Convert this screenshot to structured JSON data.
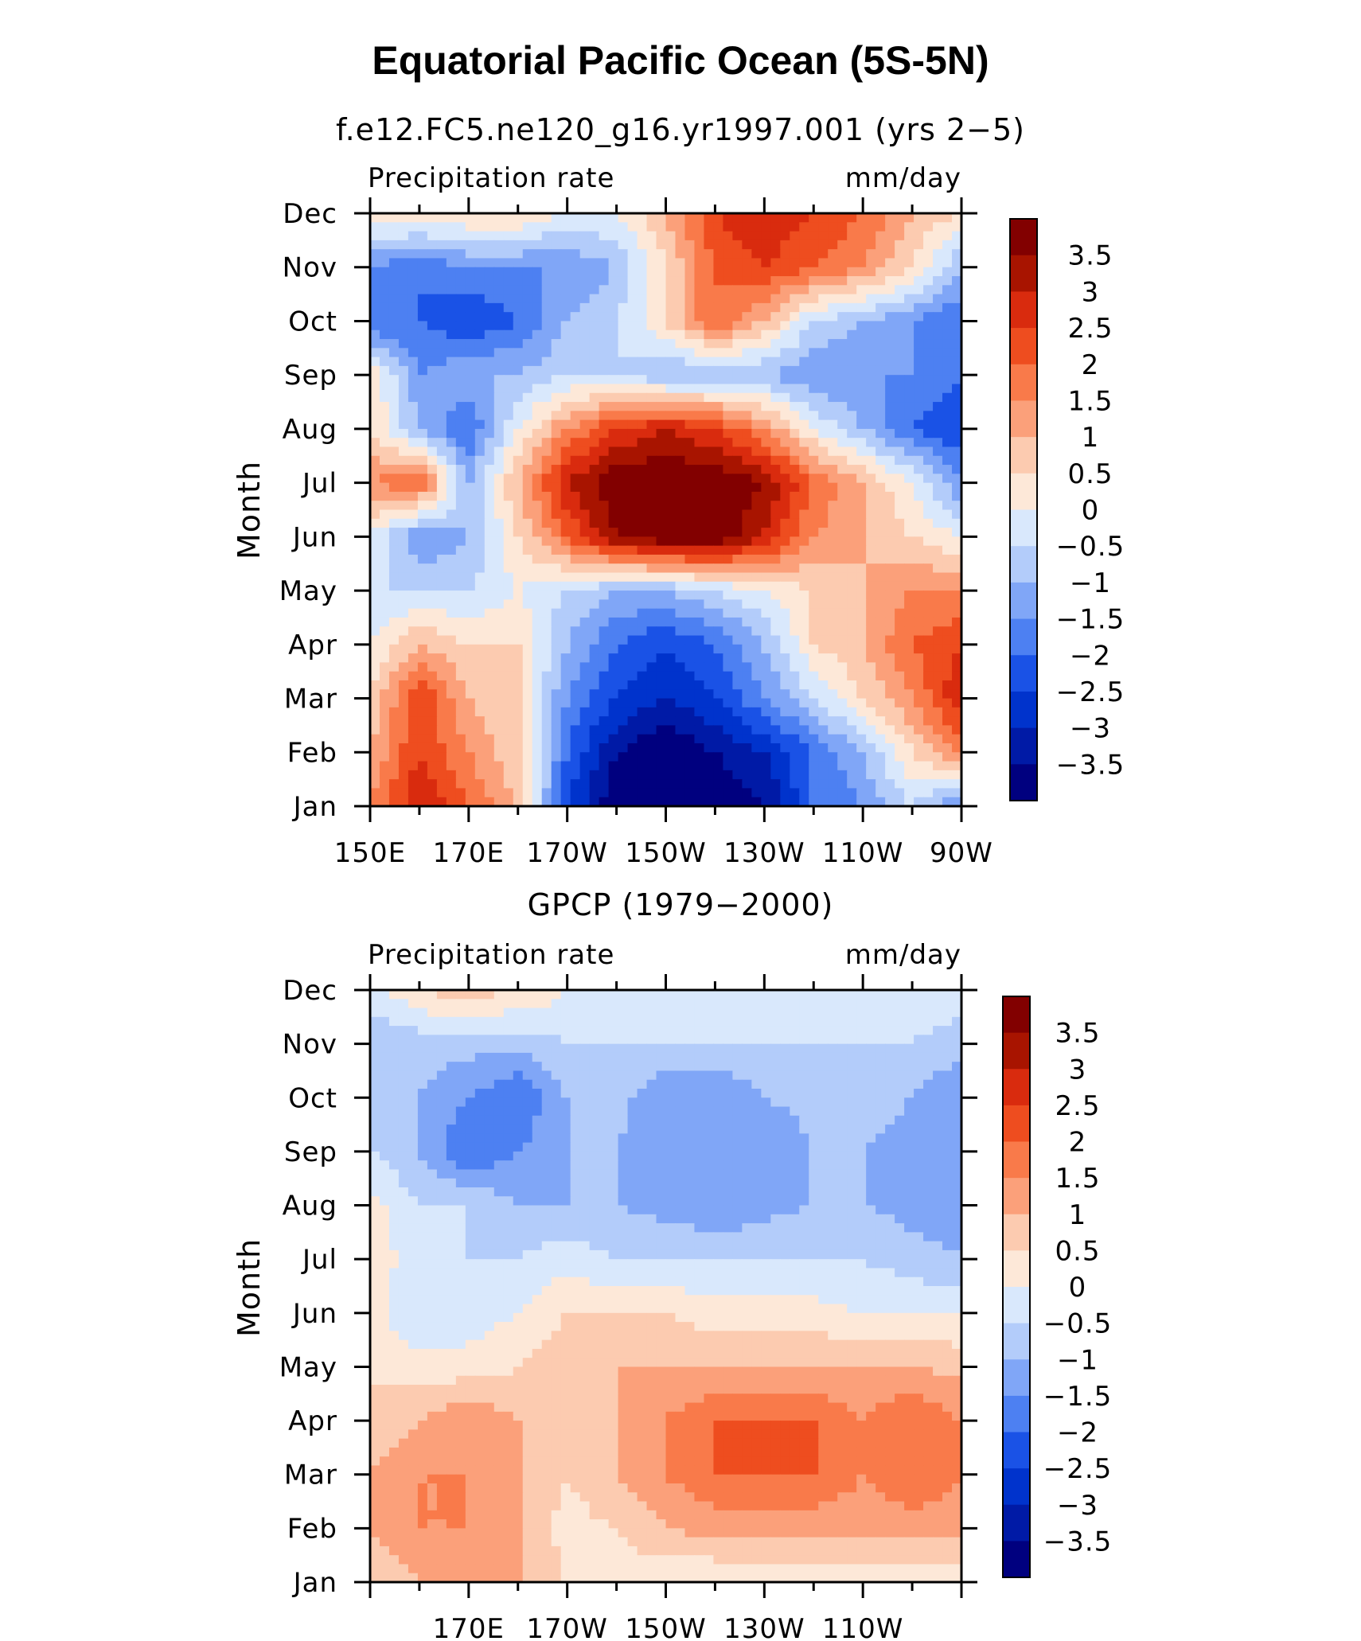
{
  "figure": {
    "title": "Equatorial Pacific Ocean (5S-5N)"
  },
  "contour_levels": [
    -3.5,
    -3,
    -2.5,
    -2,
    -1.5,
    -1,
    -0.5,
    0,
    0.5,
    1,
    1.5,
    2,
    2.5,
    3,
    3.5
  ],
  "colorbar_colors": [
    "#00007f",
    "#001aa6",
    "#0033cc",
    "#1a52e6",
    "#4d80f2",
    "#80a6f7",
    "#b3ccfa",
    "#d9e8fc",
    "#fde8d8",
    "#fccbb0",
    "#fba07a",
    "#f97a4a",
    "#ee4d1f",
    "#d92b0e",
    "#a81400",
    "#820000"
  ],
  "colorbar_labels": [
    "3.5",
    "3",
    "2.5",
    "2",
    "1.5",
    "1",
    "0.5",
    "0",
    "−0.5",
    "−1",
    "−1.5",
    "−2",
    "−2.5",
    "−3",
    "−3.5"
  ],
  "chart_data": [
    {
      "type": "heatmap",
      "title": "f.e12.FC5.ne120_g16.yr1997.001 (yrs 2−5)",
      "left_label": "Precipitation  rate",
      "right_label": "mm/day",
      "ylabel": "Month",
      "xlabel": "",
      "x_tick_labels": [
        "150E",
        "170E",
        "170W",
        "150W",
        "130W",
        "110W",
        "90W"
      ],
      "y_tick_labels": [
        "Jan",
        "Feb",
        "Mar",
        "Apr",
        "May",
        "Jun",
        "Jul",
        "Aug",
        "Sep",
        "Oct",
        "Nov",
        "Dec"
      ],
      "x_longitudes": [
        150,
        160,
        170,
        180,
        190,
        200,
        210,
        220,
        230,
        240,
        250,
        260,
        270
      ],
      "xlim": [
        150,
        270
      ],
      "months": [
        "Jan",
        "Feb",
        "Mar",
        "Apr",
        "May",
        "Jun",
        "Jul",
        "Aug",
        "Sep",
        "Oct",
        "Nov",
        "Dec"
      ],
      "z": [
        [
          1.5,
          3.0,
          2.0,
          1.0,
          -2.5,
          -4.0,
          -4.0,
          -4.0,
          -3.5,
          -2.0,
          -1.5,
          -0.5,
          -1.5
        ],
        [
          1.0,
          2.5,
          1.5,
          0.5,
          -2.0,
          -3.5,
          -4.0,
          -3.5,
          -3.0,
          -2.0,
          -1.0,
          0.5,
          1.5
        ],
        [
          0.5,
          2.5,
          1.0,
          0.5,
          -1.5,
          -2.5,
          -3.0,
          -2.5,
          -1.5,
          -0.5,
          0.5,
          1.5,
          3.0
        ],
        [
          0.0,
          1.0,
          0.5,
          0.5,
          -1.0,
          -2.0,
          -2.5,
          -2.0,
          -1.0,
          0.5,
          1.0,
          2.0,
          2.5
        ],
        [
          -0.5,
          -0.5,
          -0.5,
          0.0,
          -0.5,
          -1.0,
          -1.0,
          -0.5,
          0.0,
          0.5,
          1.0,
          1.5,
          1.5
        ],
        [
          0.0,
          -1.5,
          -1.0,
          0.5,
          2.0,
          3.5,
          4.0,
          4.0,
          3.0,
          1.5,
          1.0,
          0.5,
          0.0
        ],
        [
          1.5,
          2.0,
          -1.0,
          1.0,
          3.0,
          4.0,
          4.0,
          4.0,
          3.5,
          2.0,
          1.0,
          0.0,
          -1.5
        ],
        [
          0.5,
          -1.0,
          -2.0,
          0.0,
          1.5,
          2.5,
          3.0,
          2.5,
          1.5,
          0.0,
          -1.0,
          -2.0,
          -2.5
        ],
        [
          0.5,
          -1.5,
          -1.0,
          -1.0,
          -0.5,
          -0.5,
          -1.0,
          -1.0,
          -1.0,
          -1.5,
          -1.5,
          -1.5,
          -2.0
        ],
        [
          -2.0,
          -2.0,
          -2.5,
          -2.0,
          -1.0,
          -0.5,
          0.5,
          2.0,
          1.0,
          -0.5,
          -1.0,
          -1.5,
          -2.0
        ],
        [
          -1.5,
          -2.0,
          -1.5,
          -1.5,
          -1.5,
          -1.0,
          0.5,
          2.0,
          2.5,
          2.0,
          1.5,
          0.5,
          -1.0
        ],
        [
          0.5,
          0.5,
          0.5,
          0.5,
          0.0,
          0.0,
          1.0,
          2.5,
          3.0,
          2.5,
          2.0,
          1.0,
          0.5
        ]
      ]
    },
    {
      "type": "heatmap",
      "title": "GPCP (1979−2000)",
      "left_label": "Precipitation  rate",
      "right_label": "mm/day",
      "ylabel": "Month",
      "xlabel": "",
      "x_tick_labels": [
        "170E",
        "170W",
        "150W",
        "130W",
        "110W"
      ],
      "y_tick_labels": [
        "Jan",
        "Feb",
        "Mar",
        "Apr",
        "May",
        "Jun",
        "Jul",
        "Aug",
        "Sep",
        "Oct",
        "Nov",
        "Dec"
      ],
      "x_longitudes": [
        150,
        160,
        170,
        180,
        190,
        200,
        210,
        220,
        230,
        240,
        250,
        260,
        270
      ],
      "xlim": [
        150,
        270
      ],
      "months": [
        "Jan",
        "Feb",
        "Mar",
        "Apr",
        "May",
        "Jun",
        "Jul",
        "Aug",
        "Sep",
        "Oct",
        "Nov",
        "Dec"
      ],
      "z": [
        [
          0.5,
          1.0,
          1.5,
          1.0,
          0.5,
          0.3,
          0.0,
          0.0,
          0.0,
          0.2,
          0.2,
          0.2,
          0.2
        ],
        [
          1.0,
          1.5,
          1.5,
          1.0,
          0.3,
          0.5,
          1.0,
          1.2,
          1.2,
          1.2,
          1.2,
          1.2,
          1.2
        ],
        [
          1.0,
          1.5,
          1.5,
          1.0,
          0.5,
          1.0,
          1.5,
          2.0,
          2.0,
          2.0,
          1.5,
          2.0,
          1.5
        ],
        [
          0.5,
          1.0,
          1.5,
          1.0,
          0.8,
          1.0,
          1.5,
          2.0,
          2.0,
          2.0,
          1.5,
          2.0,
          1.5
        ],
        [
          0.5,
          0.2,
          0.2,
          0.5,
          0.8,
          1.0,
          1.0,
          1.0,
          1.0,
          1.0,
          1.0,
          1.0,
          0.8
        ],
        [
          0.2,
          -0.5,
          -0.3,
          0.0,
          0.5,
          0.5,
          0.5,
          0.2,
          0.2,
          0.2,
          0.0,
          0.0,
          0.0
        ],
        [
          0.5,
          -0.5,
          -0.5,
          -0.5,
          -0.2,
          -0.5,
          -0.5,
          -0.5,
          -0.5,
          -0.5,
          -0.5,
          -0.8,
          -1.0
        ],
        [
          0.2,
          -0.5,
          -0.5,
          -1.0,
          -1.0,
          -1.0,
          -1.2,
          -1.5,
          -1.2,
          -1.0,
          -1.0,
          -1.2,
          -1.2
        ],
        [
          -0.5,
          -1.0,
          -2.0,
          -1.5,
          -1.0,
          -1.0,
          -1.5,
          -1.5,
          -1.5,
          -1.0,
          -1.0,
          -1.2,
          -1.5
        ],
        [
          -1.0,
          -1.0,
          -1.5,
          -2.0,
          -1.0,
          -0.8,
          -1.5,
          -1.5,
          -1.0,
          -0.8,
          -0.8,
          -1.0,
          -1.5
        ],
        [
          -1.0,
          -0.8,
          -0.8,
          -0.8,
          -0.5,
          -0.5,
          -0.5,
          -0.5,
          -0.5,
          -0.5,
          -0.5,
          -0.5,
          -0.8
        ],
        [
          -0.2,
          0.5,
          0.8,
          0.5,
          0.0,
          -0.2,
          -0.2,
          -0.2,
          -0.2,
          -0.2,
          -0.2,
          -0.2,
          -0.2
        ]
      ]
    }
  ]
}
